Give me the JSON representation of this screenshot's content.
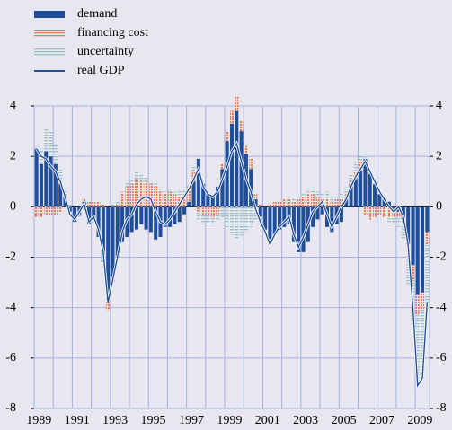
{
  "chart_data": {
    "type": "bar",
    "categories": [
      "1989",
      null,
      null,
      null,
      null,
      null,
      null,
      null,
      "1991",
      null,
      null,
      null,
      null,
      null,
      null,
      null,
      "1993",
      null,
      null,
      null,
      null,
      null,
      null,
      null,
      "1995",
      null,
      null,
      null,
      null,
      null,
      null,
      null,
      "1997",
      null,
      null,
      null,
      null,
      null,
      null,
      null,
      "1999",
      null,
      null,
      null,
      null,
      null,
      null,
      null,
      "2001",
      null,
      null,
      null,
      null,
      null,
      null,
      null,
      "2003",
      null,
      null,
      null,
      null,
      null,
      null,
      null,
      "2005",
      null,
      null,
      null,
      null,
      null,
      null,
      null,
      "2007",
      null,
      null,
      null,
      null,
      null,
      null,
      null,
      "2009",
      null,
      null
    ],
    "series": [
      {
        "name": "demand",
        "color": "#1f4e9a",
        "values": [
          2.3,
          1.7,
          2.2,
          2.0,
          1.7,
          0.9,
          0.4,
          -0.2,
          -0.6,
          -0.3,
          0.2,
          -0.7,
          -0.5,
          -1.2,
          -2.2,
          -3.7,
          -2.8,
          -2.0,
          -1.4,
          -1.2,
          -1.0,
          -0.9,
          -0.7,
          -0.9,
          -1.0,
          -1.3,
          -1.2,
          -0.8,
          -0.8,
          -0.7,
          -0.6,
          -0.3,
          0.2,
          1.0,
          1.9,
          0.9,
          0.5,
          0.4,
          0.8,
          1.5,
          2.6,
          3.3,
          3.8,
          3.0,
          2.1,
          1.5,
          0.3,
          -0.4,
          -0.9,
          -1.3,
          -1.1,
          -0.9,
          -0.8,
          -0.7,
          -1.4,
          -1.8,
          -1.8,
          -1.4,
          -0.8,
          -0.5,
          -0.3,
          -0.8,
          -1.0,
          -0.7,
          -0.6,
          0.3,
          0.9,
          1.1,
          1.4,
          1.9,
          1.3,
          0.9,
          0.5,
          0.3,
          0.2,
          -0.1,
          -0.2,
          -0.5,
          -1.5,
          -2.3,
          -3.5,
          -3.4,
          -1.0
        ]
      },
      {
        "name": "financing cost",
        "color": "#e07a5f",
        "values": [
          -0.4,
          -0.4,
          -0.3,
          -0.3,
          -0.3,
          -0.2,
          0,
          0,
          0,
          0,
          0.1,
          0.2,
          0.2,
          0.2,
          0.1,
          -0.4,
          -0.2,
          0.1,
          0.5,
          0.8,
          0.9,
          1.1,
          1.0,
          1.0,
          0.9,
          0.8,
          0.6,
          0.5,
          0.6,
          0.5,
          0.4,
          0.5,
          0.6,
          0.4,
          -0.2,
          -0.3,
          -0.3,
          -0.4,
          -0.3,
          0.2,
          0.4,
          0.5,
          0.6,
          0.4,
          0.3,
          0.4,
          0.2,
          0.1,
          0,
          0.1,
          0.2,
          0.2,
          0.3,
          0.3,
          0.2,
          0.3,
          0.4,
          0.5,
          0.5,
          0.4,
          0.3,
          0.3,
          0.2,
          0.3,
          0.3,
          0.2,
          0.1,
          0.3,
          0.4,
          -0.3,
          -0.5,
          -0.4,
          -0.3,
          -0.4,
          -0.4,
          -0.3,
          -0.2,
          -0.1,
          -0.4,
          -0.6,
          -0.8,
          -0.7,
          -0.5
        ]
      },
      {
        "name": "uncertainty",
        "color": "#9fbcc6",
        "values": [
          0.1,
          0.6,
          0.9,
          1.0,
          0.8,
          0.6,
          0.3,
          0.1,
          0,
          -0.1,
          -0.1,
          0,
          -0.1,
          0,
          0,
          0,
          0.1,
          0.1,
          0.1,
          0.2,
          0.2,
          0.3,
          0.3,
          0.2,
          0.1,
          0.2,
          0.2,
          0.1,
          0.1,
          0.1,
          0.3,
          0.2,
          0.1,
          0.2,
          -0.3,
          -0.4,
          -0.3,
          -0.3,
          -0.2,
          -0.4,
          -0.8,
          -1.1,
          -1.3,
          -1.2,
          -1.0,
          -0.8,
          -0.5,
          -0.3,
          -0.1,
          -0.1,
          0,
          0,
          0,
          0.1,
          0.1,
          0.1,
          0.1,
          0.2,
          0.3,
          0.2,
          0.2,
          0.3,
          0.2,
          0.1,
          0.2,
          0.3,
          0.3,
          0.4,
          0.2,
          0.2,
          0.1,
          0,
          0.1,
          0,
          -0.2,
          -0.3,
          -0.4,
          -0.7,
          -1.2,
          -1.8,
          -2.8,
          -2.7,
          -2.3
        ]
      },
      {
        "name": "real GDP",
        "color": "#1f4e9a",
        "type": "line",
        "values": [
          2.3,
          2.0,
          1.9,
          1.6,
          1.4,
          1.0,
          0.4,
          -0.3,
          -0.5,
          -0.2,
          0.1,
          -0.6,
          -0.4,
          -0.9,
          -1.8,
          -3.8,
          -2.9,
          -2.0,
          -1.0,
          -0.5,
          -0.3,
          0.1,
          0.3,
          0.4,
          0.3,
          -0.2,
          -0.6,
          -0.7,
          -0.5,
          -0.2,
          0.1,
          0.4,
          0.7,
          1.1,
          1.5,
          0.8,
          0.5,
          0.4,
          0.6,
          1.1,
          1.6,
          2.2,
          2.5,
          1.8,
          1.1,
          0.6,
          -0.1,
          -0.6,
          -1.0,
          -1.5,
          -1.1,
          -0.8,
          -0.6,
          -0.4,
          -1.1,
          -1.6,
          -1.2,
          -0.7,
          -0.2,
          0.0,
          0.2,
          -0.3,
          -0.8,
          -0.4,
          0.0,
          0.3,
          0.8,
          1.2,
          1.5,
          1.8,
          1.4,
          1.0,
          0.6,
          0.3,
          0.0,
          -0.2,
          0.0,
          -0.4,
          -1.5,
          -4.0,
          -7.1,
          -6.8,
          -3.8
        ]
      }
    ],
    "ylim": [
      -8,
      4
    ],
    "yticks": [
      -8,
      -6,
      -4,
      -2,
      0,
      2,
      4
    ],
    "grid": true
  }
}
